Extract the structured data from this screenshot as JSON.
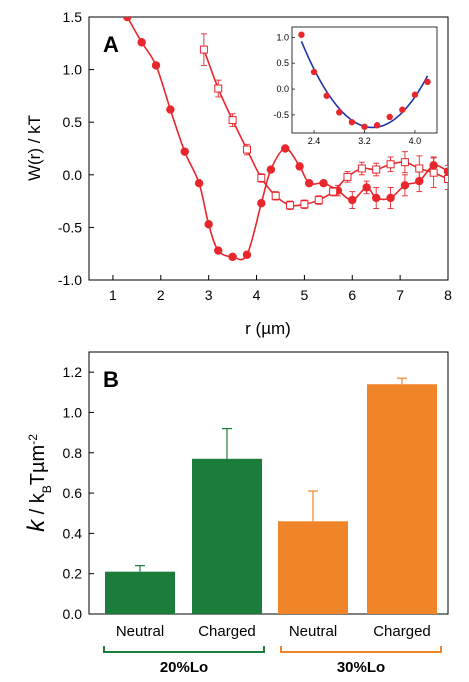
{
  "colors": {
    "red": "#e8262c",
    "blue": "#2233aa",
    "green": "#1a7d3a",
    "orange": "#f08428"
  },
  "chart_data": [
    {
      "panel": "A",
      "type": "line",
      "xlabel": "r (µm)",
      "ylabel": "W(r) / kT",
      "xlim": [
        0.5,
        8
      ],
      "ylim": [
        -1.0,
        1.5
      ],
      "xticks": [
        "1",
        "2",
        "3",
        "4",
        "5",
        "6",
        "7",
        "8"
      ],
      "yticks": [
        "-1.0",
        "-0.5",
        "0.0",
        "0.5",
        "1.0",
        "1.5"
      ],
      "series": [
        {
          "marker": "filled-circle",
          "color": "#e8262c",
          "x": [
            1.3,
            1.6,
            1.9,
            2.2,
            2.5,
            2.8,
            3.0,
            3.2,
            3.5,
            3.8,
            4.1,
            4.3,
            4.6,
            4.9,
            5.1,
            5.4,
            5.7,
            6.0,
            6.3,
            6.5,
            6.8,
            7.1,
            7.4,
            7.7,
            8.0
          ],
          "y": [
            1.5,
            1.26,
            1.04,
            0.62,
            0.22,
            -0.08,
            -0.47,
            -0.72,
            -0.78,
            -0.76,
            -0.27,
            0.05,
            0.25,
            0.08,
            -0.08,
            -0.08,
            -0.15,
            -0.24,
            -0.12,
            -0.22,
            -0.22,
            -0.1,
            -0.06,
            0.09,
            0.03
          ],
          "err": [
            0,
            0,
            0,
            0,
            0,
            0,
            0,
            0,
            0,
            0,
            0,
            0,
            0,
            0,
            0,
            0,
            0.05,
            0.08,
            0.06,
            0.1,
            0.1,
            0.1,
            0.1,
            0.08,
            0.06
          ]
        },
        {
          "marker": "open-square",
          "color": "#e8262c",
          "x": [
            2.9,
            3.2,
            3.5,
            3.8,
            4.1,
            4.4,
            4.7,
            5.0,
            5.3,
            5.6,
            5.9,
            6.2,
            6.5,
            6.8,
            7.1,
            7.4,
            7.7,
            8.0
          ],
          "y": [
            1.19,
            0.82,
            0.52,
            0.24,
            -0.03,
            -0.2,
            -0.29,
            -0.28,
            -0.24,
            -0.16,
            -0.02,
            0.06,
            0.05,
            0.1,
            0.12,
            0.06,
            0.02,
            -0.04
          ],
          "err": [
            0.15,
            0.08,
            0.06,
            0.05,
            0.04,
            0.04,
            0.04,
            0.04,
            0.04,
            0.04,
            0.05,
            0.06,
            0.06,
            0.07,
            0.1,
            0.12,
            0.14,
            0.1
          ]
        }
      ],
      "inset": {
        "xticks": [
          "2.4",
          "3.2",
          "4.0"
        ],
        "yticks": [
          "-0.5",
          "0.0",
          "0.5",
          "1.0"
        ],
        "xlim": [
          2.05,
          4.35
        ],
        "ylim": [
          -0.85,
          1.2
        ],
        "points": {
          "x": [
            2.2,
            2.4,
            2.6,
            2.8,
            3.0,
            3.2,
            3.4,
            3.6,
            3.8,
            4.0,
            4.2
          ],
          "y": [
            1.05,
            0.33,
            -0.13,
            -0.45,
            -0.64,
            -0.73,
            -0.7,
            -0.54,
            -0.4,
            -0.11,
            0.14
          ]
        },
        "fit": "parabola",
        "fit_color": "#2233aa"
      }
    },
    {
      "panel": "B",
      "type": "bar",
      "ylim": [
        0.0,
        1.3
      ],
      "yticks": [
        "0.0",
        "0.2",
        "0.4",
        "0.6",
        "0.8",
        "1.0",
        "1.2"
      ],
      "categories": [
        "Neutral",
        "Charged",
        "Neutral",
        "Charged"
      ],
      "values": [
        0.21,
        0.77,
        0.46,
        1.14
      ],
      "errors": [
        0.03,
        0.15,
        0.15,
        0.03
      ],
      "bar_colors": [
        "#1a7d3a",
        "#1a7d3a",
        "#f08428",
        "#f08428"
      ],
      "groups": [
        {
          "label": "20%Lo",
          "color": "#1a7d3a"
        },
        {
          "label": "30%Lo",
          "color": "#f08428"
        }
      ]
    }
  ]
}
